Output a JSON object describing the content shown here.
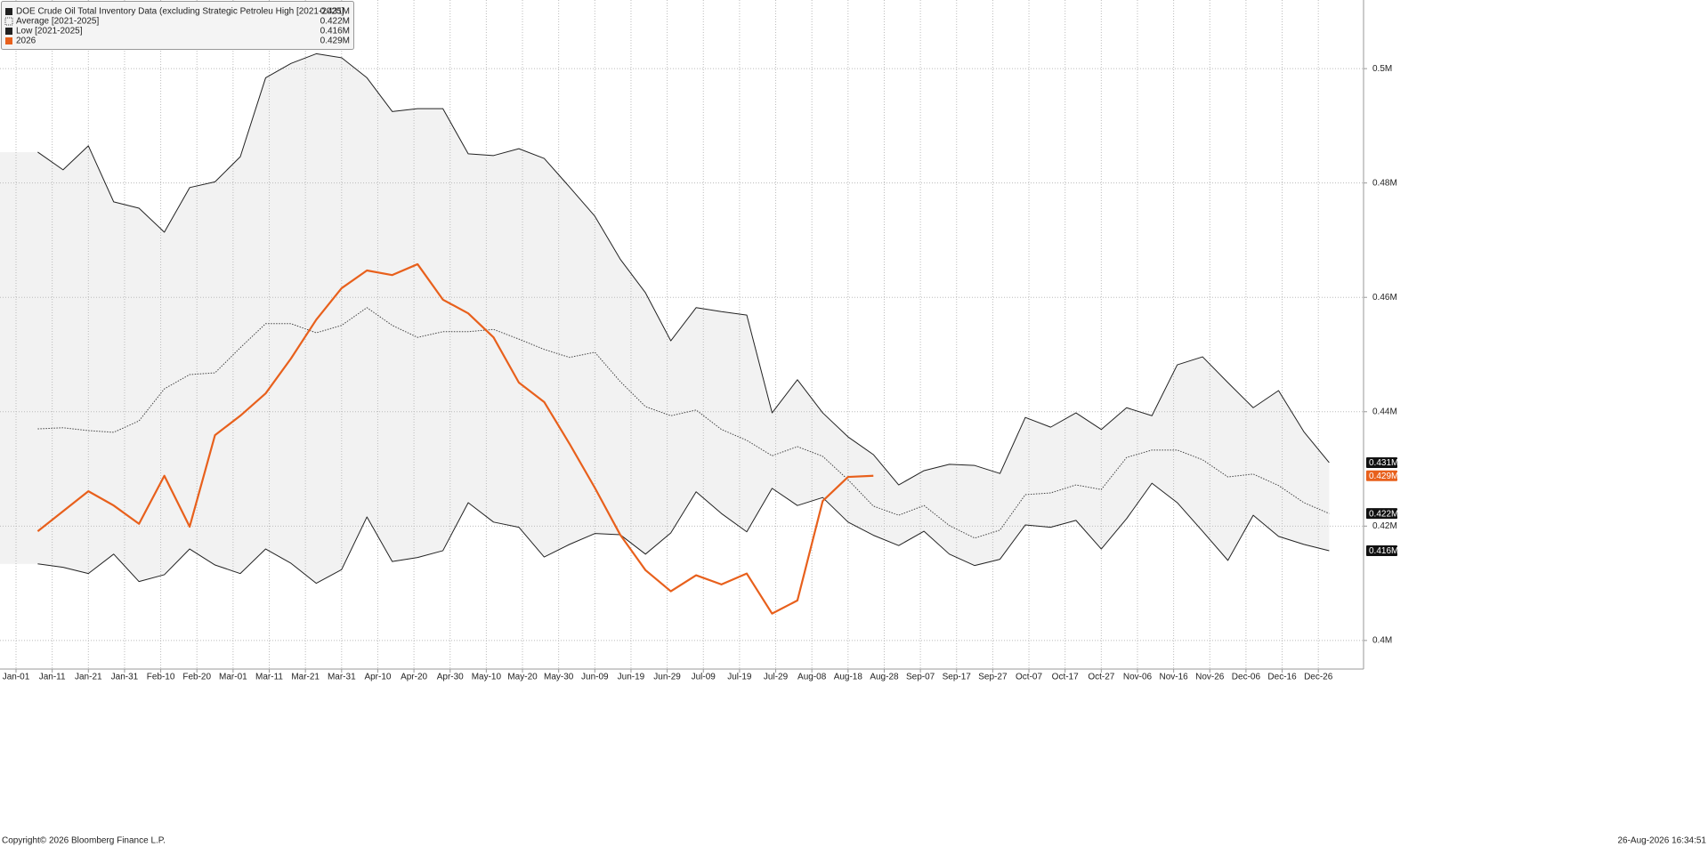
{
  "chart_data": {
    "type": "line",
    "xlim": [
      -4.43,
      372.5
    ],
    "xticks": [
      {
        "value": 0,
        "label": "Jan-01"
      },
      {
        "value": 10,
        "label": "Jan-11"
      },
      {
        "value": 20,
        "label": "Jan-21"
      },
      {
        "value": 30,
        "label": "Jan-31"
      },
      {
        "value": 40,
        "label": "Feb-10"
      },
      {
        "value": 50,
        "label": "Feb-20"
      },
      {
        "value": 60,
        "label": "Mar-01"
      },
      {
        "value": 70,
        "label": "Mar-11"
      },
      {
        "value": 80,
        "label": "Mar-21"
      },
      {
        "value": 90,
        "label": "Mar-31"
      },
      {
        "value": 100,
        "label": "Apr-10"
      },
      {
        "value": 110,
        "label": "Apr-20"
      },
      {
        "value": 120,
        "label": "Apr-30"
      },
      {
        "value": 130,
        "label": "May-10"
      },
      {
        "value": 140,
        "label": "May-20"
      },
      {
        "value": 150,
        "label": "May-30"
      },
      {
        "value": 160,
        "label": "Jun-09"
      },
      {
        "value": 170,
        "label": "Jun-19"
      },
      {
        "value": 180,
        "label": "Jun-29"
      },
      {
        "value": 190,
        "label": "Jul-09"
      },
      {
        "value": 200,
        "label": "Jul-19"
      },
      {
        "value": 210,
        "label": "Jul-29"
      },
      {
        "value": 220,
        "label": "Aug-08"
      },
      {
        "value": 230,
        "label": "Aug-18"
      },
      {
        "value": 240,
        "label": "Aug-28"
      },
      {
        "value": 250,
        "label": "Sep-07"
      },
      {
        "value": 260,
        "label": "Sep-17"
      },
      {
        "value": 270,
        "label": "Sep-27"
      },
      {
        "value": 280,
        "label": "Oct-07"
      },
      {
        "value": 290,
        "label": "Oct-17"
      },
      {
        "value": 300,
        "label": "Oct-27"
      },
      {
        "value": 310,
        "label": "Nov-06"
      },
      {
        "value": 320,
        "label": "Nov-16"
      },
      {
        "value": 330,
        "label": "Nov-26"
      },
      {
        "value": 340,
        "label": "Dec-06"
      },
      {
        "value": 350,
        "label": "Dec-16"
      },
      {
        "value": 360,
        "label": "Dec-26"
      }
    ],
    "ylim": [
      0.395,
      0.512
    ],
    "yticks": [
      {
        "value": 0.4,
        "label": "0.4M"
      },
      {
        "value": 0.42,
        "label": "0.42M"
      },
      {
        "value": 0.44,
        "label": "0.44M"
      },
      {
        "value": 0.46,
        "label": "0.46M"
      },
      {
        "value": 0.48,
        "label": "0.48M"
      },
      {
        "value": 0.5,
        "label": "0.5M"
      }
    ],
    "grid": true,
    "legend": "top-left",
    "band_color": "#f2f2f2",
    "x": [
      6,
      13,
      20,
      27,
      34,
      41,
      48,
      55,
      62,
      69,
      76,
      83,
      90,
      97,
      104,
      111,
      118,
      125,
      132,
      139,
      146,
      153,
      160,
      167,
      174,
      181,
      188,
      195,
      202,
      209,
      216,
      223,
      230,
      237,
      244,
      251,
      258,
      265,
      272,
      279,
      286,
      293,
      300,
      307,
      314,
      321,
      328,
      335,
      342,
      349,
      356,
      363
    ],
    "series": [
      {
        "name": "DOE Crude Oil Total Inventory Data (excluding Strategic Petroleu High [2021-2025]",
        "color": "#222222",
        "style": "solid",
        "width": 1,
        "values": [
          0.4854,
          0.4823,
          0.4865,
          0.4767,
          0.4756,
          0.4714,
          0.4792,
          0.4802,
          0.4846,
          0.4984,
          0.5009,
          0.5026,
          0.5019,
          0.4984,
          0.4925,
          0.493,
          0.493,
          0.4851,
          0.4848,
          0.486,
          0.4843,
          0.4793,
          0.4742,
          0.4667,
          0.4608,
          0.4524,
          0.4582,
          0.4575,
          0.4569,
          0.4398,
          0.4456,
          0.4398,
          0.4356,
          0.4325,
          0.4272,
          0.4297,
          0.4308,
          0.4306,
          0.4292,
          0.439,
          0.4373,
          0.4398,
          0.4369,
          0.4407,
          0.4393,
          0.4482,
          0.4496,
          0.4451,
          0.4407,
          0.4437,
          0.4365,
          0.4311
        ],
        "value_labels": [
          null,
          null,
          null,
          null,
          null,
          null,
          null,
          null,
          null,
          null,
          null,
          null,
          null,
          null,
          null,
          null,
          null,
          null,
          null,
          null,
          null,
          null,
          null,
          null,
          null,
          null,
          null,
          null,
          null,
          null,
          null,
          null,
          null,
          null,
          null,
          null,
          null,
          null,
          null,
          null,
          null,
          null,
          null,
          null,
          null,
          null,
          null,
          null,
          null,
          null,
          null,
          "0.431M"
        ]
      },
      {
        "name": "Average  [2021-2025]",
        "color": "#444444",
        "style": "dotted",
        "width": 1,
        "values": [
          0.437,
          0.4372,
          0.4367,
          0.4364,
          0.4384,
          0.444,
          0.4465,
          0.4468,
          0.4512,
          0.4554,
          0.4554,
          0.4538,
          0.4551,
          0.4582,
          0.4551,
          0.453,
          0.454,
          0.454,
          0.4544,
          0.4527,
          0.4509,
          0.4495,
          0.4504,
          0.4453,
          0.4409,
          0.4393,
          0.4403,
          0.4369,
          0.435,
          0.4323,
          0.4339,
          0.4322,
          0.4281,
          0.4235,
          0.4219,
          0.4236,
          0.4201,
          0.4179,
          0.4193,
          0.4255,
          0.4258,
          0.4272,
          0.4264,
          0.432,
          0.4333,
          0.4333,
          0.4316,
          0.4286,
          0.4291,
          0.4271,
          0.4241,
          0.4222
        ],
        "value_labels": [
          null,
          null,
          null,
          null,
          null,
          null,
          null,
          null,
          null,
          null,
          null,
          null,
          null,
          null,
          null,
          null,
          null,
          null,
          null,
          null,
          null,
          null,
          null,
          null,
          null,
          null,
          null,
          null,
          null,
          null,
          null,
          null,
          null,
          null,
          null,
          null,
          null,
          null,
          null,
          null,
          null,
          null,
          null,
          null,
          null,
          null,
          null,
          null,
          null,
          null,
          null,
          "0.422M"
        ]
      },
      {
        "name": "Low  [2021-2025]",
        "color": "#222222",
        "style": "solid",
        "width": 1,
        "values": [
          0.4134,
          0.4128,
          0.4117,
          0.4151,
          0.4103,
          0.4115,
          0.416,
          0.4132,
          0.4117,
          0.416,
          0.4135,
          0.41,
          0.4124,
          0.4216,
          0.4138,
          0.4145,
          0.4157,
          0.4241,
          0.4207,
          0.4198,
          0.4146,
          0.4168,
          0.4187,
          0.4185,
          0.4151,
          0.4188,
          0.426,
          0.4222,
          0.419,
          0.4266,
          0.4236,
          0.425,
          0.4207,
          0.4184,
          0.4166,
          0.4191,
          0.4151,
          0.4131,
          0.4142,
          0.4202,
          0.4198,
          0.421,
          0.416,
          0.4213,
          0.4275,
          0.4241,
          0.4191,
          0.414,
          0.4219,
          0.4182,
          0.4168,
          0.4157
        ],
        "value_labels": [
          null,
          null,
          null,
          null,
          null,
          null,
          null,
          null,
          null,
          null,
          null,
          null,
          null,
          null,
          null,
          null,
          null,
          null,
          null,
          null,
          null,
          null,
          null,
          null,
          null,
          null,
          null,
          null,
          null,
          null,
          null,
          null,
          null,
          null,
          null,
          null,
          null,
          null,
          null,
          null,
          null,
          null,
          null,
          null,
          null,
          null,
          null,
          null,
          null,
          null,
          null,
          "0.416M"
        ]
      },
      {
        "name": "2026",
        "color": "#e8601c",
        "style": "solid",
        "width": 2.2,
        "values": [
          0.4191,
          0.4226,
          0.4261,
          0.4236,
          0.4204,
          0.4288,
          0.4199,
          0.4359,
          0.4393,
          0.4432,
          0.4493,
          0.4561,
          0.4616,
          0.4647,
          0.4639,
          0.4658,
          0.4596,
          0.4572,
          0.453,
          0.4451,
          0.4417,
          0.4344,
          0.4267,
          0.4185,
          0.4123,
          0.4086,
          0.4114,
          0.4098,
          0.4117,
          0.4047,
          0.407,
          0.4244,
          0.4286,
          0.4288,
          null,
          null,
          null,
          null,
          null,
          null,
          null,
          null,
          null,
          null,
          null,
          null,
          null,
          null,
          null,
          null,
          null,
          null
        ],
        "value_labels": [
          null,
          null,
          null,
          null,
          null,
          null,
          null,
          null,
          null,
          null,
          null,
          null,
          null,
          null,
          null,
          null,
          null,
          null,
          null,
          null,
          null,
          null,
          null,
          null,
          null,
          null,
          null,
          null,
          null,
          null,
          null,
          null,
          null,
          "0.429M",
          null,
          null,
          null,
          null,
          null,
          null,
          null,
          null,
          null,
          null,
          null,
          null,
          null,
          null,
          null,
          null,
          null,
          null
        ]
      }
    ],
    "source": "Copyright© 2026 Bloomberg Finance L.P.",
    "timestamp": "26-Aug-2026 16:34:51"
  }
}
